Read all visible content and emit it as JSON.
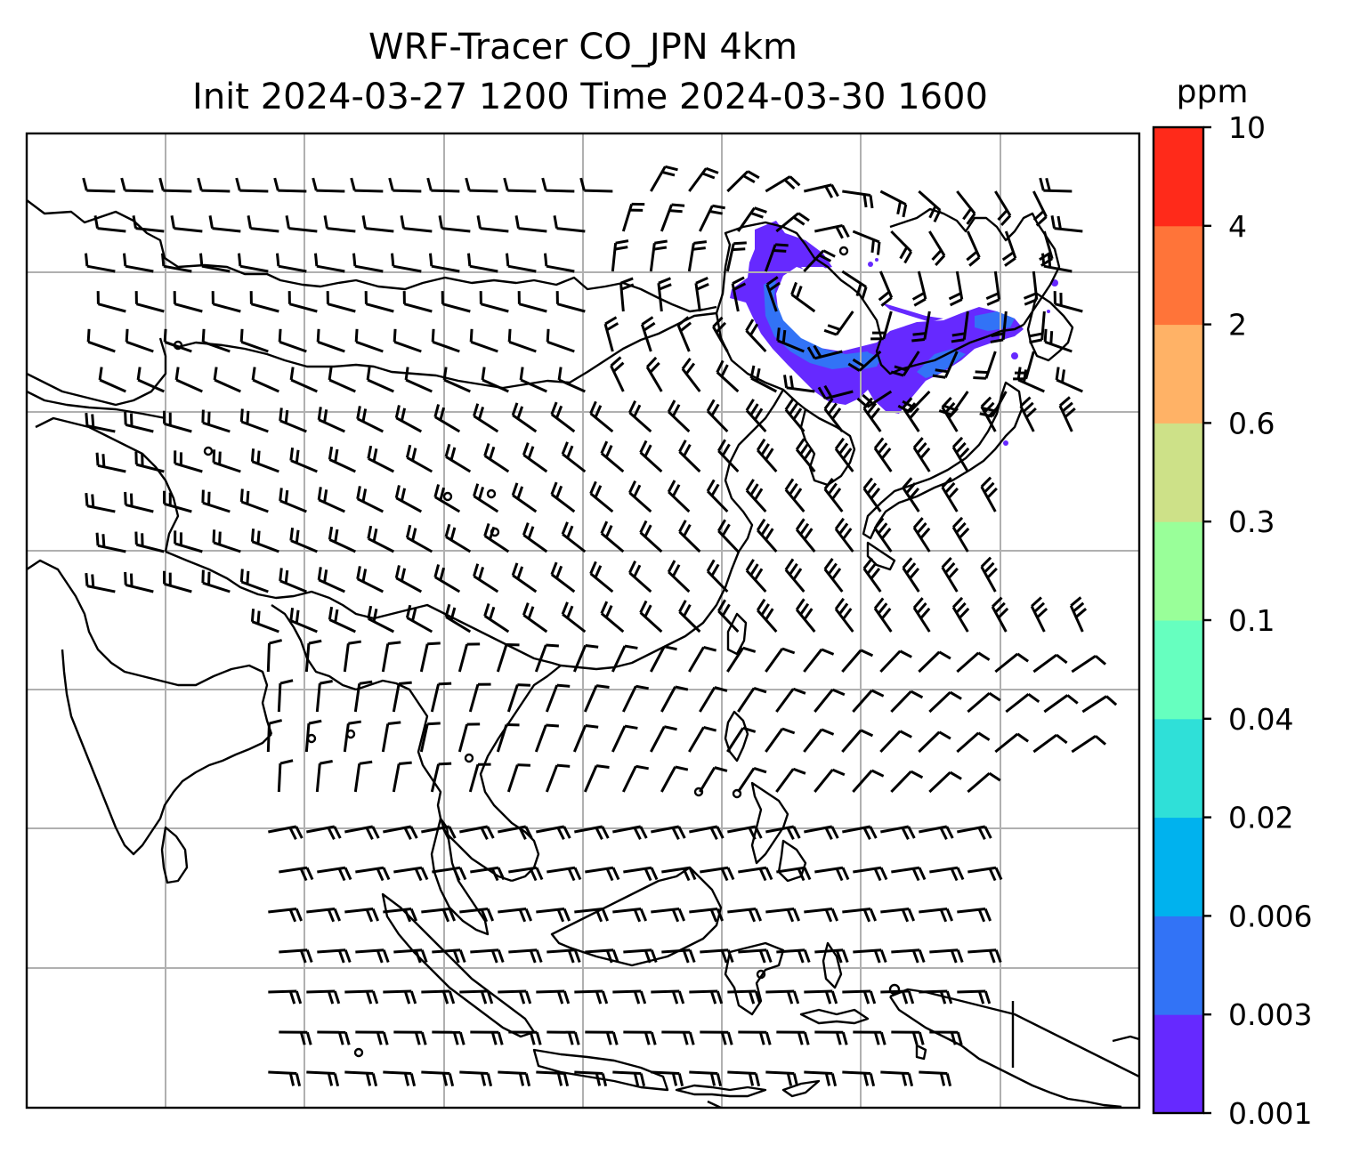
{
  "title": {
    "line1": "WRF-Tracer CO_JPN 4km",
    "line2": "Init 2024-03-27 1200 Time 2024-03-30 1600"
  },
  "colorbar": {
    "unit": "ppm",
    "bounds": [
      "0.001",
      "0.003",
      "0.006",
      "0.02",
      "0.04",
      "0.1",
      "0.3",
      "0.6",
      "2",
      "4",
      "10"
    ],
    "colors": [
      "#6629ff",
      "#3273f6",
      "#00b2ee",
      "#2fe0d8",
      "#66ffbf",
      "#99ff99",
      "#cde188",
      "#ffb266",
      "#ff7439",
      "#ff2a1a"
    ]
  },
  "map": {
    "gridlines": true,
    "coastlines": true,
    "grid_color": "#b0b0b0",
    "barb_color": "#000000",
    "features": [
      "coastlines-and-borders",
      "wind-barbs",
      "calm-wind-circles",
      "co-tracer-plume-over-northeast-china"
    ]
  },
  "chart_data": {
    "type": "heatmap",
    "variable": "CO tracer",
    "unit": "ppm",
    "levels": [
      0.001,
      0.003,
      0.006,
      0.02,
      0.04,
      0.1,
      0.3,
      0.6,
      2,
      4,
      10
    ],
    "plume_levels_present": [
      "0.001-0.003",
      "0.003-0.006"
    ]
  }
}
